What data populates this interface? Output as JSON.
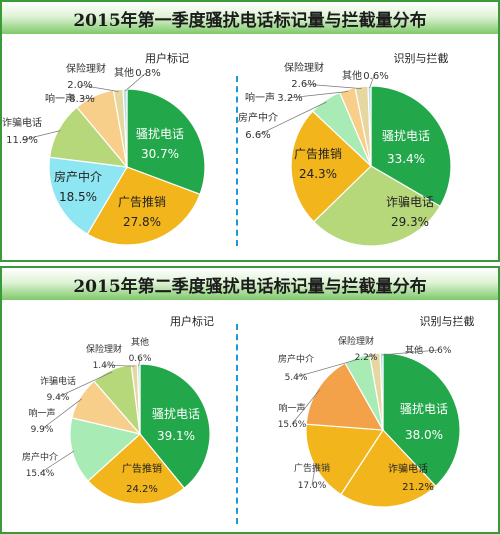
{
  "chart_data": [
    {
      "type": "pie",
      "group_title": "2015年第一季度骚扰电话标记量与拦截量分布",
      "title": "用户标记",
      "slices": [
        {
          "label": "骚扰电话",
          "value": 30.7,
          "value_text": "30.7%"
        },
        {
          "label": "广告推销",
          "value": 27.8,
          "value_text": "27.8%"
        },
        {
          "label": "房产中介",
          "value": 18.5,
          "value_text": "18.5%"
        },
        {
          "label": "诈骗电话",
          "value": 11.9,
          "value_text": "11.9%"
        },
        {
          "label": "响一声",
          "value": 8.3,
          "value_text": "8.3%"
        },
        {
          "label": "保险理财",
          "value": 2.0,
          "value_text": "2.0%"
        },
        {
          "label": "其他",
          "value": 0.8,
          "value_text": "0.8%"
        }
      ]
    },
    {
      "type": "pie",
      "group_title": "2015年第一季度骚扰电话标记量与拦截量分布",
      "title": "识别与拦截",
      "slices": [
        {
          "label": "骚扰电话",
          "value": 33.4,
          "value_text": "33.4%"
        },
        {
          "label": "诈骗电话",
          "value": 29.3,
          "value_text": "29.3%"
        },
        {
          "label": "广告推销",
          "value": 24.3,
          "value_text": "24.3%"
        },
        {
          "label": "房产中介",
          "value": 6.6,
          "value_text": "6.6%"
        },
        {
          "label": "响一声",
          "value": 3.2,
          "value_text": "3.2%"
        },
        {
          "label": "保险理财",
          "value": 2.6,
          "value_text": "2.6%"
        },
        {
          "label": "其他",
          "value": 0.6,
          "value_text": "0.6%"
        }
      ]
    },
    {
      "type": "pie",
      "group_title": "2015年第二季度骚扰电话标记量与拦截量分布",
      "title": "用户标记",
      "slices": [
        {
          "label": "骚扰电话",
          "value": 39.1,
          "value_text": "39.1%"
        },
        {
          "label": "广告推销",
          "value": 24.2,
          "value_text": "24.2%"
        },
        {
          "label": "房产中介",
          "value": 15.4,
          "value_text": "15.4%"
        },
        {
          "label": "响一声",
          "value": 9.9,
          "value_text": "9.9%"
        },
        {
          "label": "诈骗电话",
          "value": 9.4,
          "value_text": "9.4%"
        },
        {
          "label": "保险理财",
          "value": 1.4,
          "value_text": "1.4%"
        },
        {
          "label": "其他",
          "value": 0.6,
          "value_text": "0.6%"
        }
      ]
    },
    {
      "type": "pie",
      "group_title": "2015年第二季度骚扰电话标记量与拦截量分布",
      "title": "识别与拦截",
      "slices": [
        {
          "label": "骚扰电话",
          "value": 38.0,
          "value_text": "38.0%"
        },
        {
          "label": "诈骗电话",
          "value": 21.2,
          "value_text": "21.2%"
        },
        {
          "label": "广告推销",
          "value": 17.0,
          "value_text": "17.0%"
        },
        {
          "label": "响一声",
          "value": 15.6,
          "value_text": "15.6%"
        },
        {
          "label": "房产中介",
          "value": 5.4,
          "value_text": "5.4%"
        },
        {
          "label": "保险理财",
          "value": 2.2,
          "value_text": "2.2%"
        },
        {
          "label": "其他",
          "value": 0.6,
          "value_text": "0.6%"
        }
      ]
    }
  ],
  "colors": {
    "骚扰电话": "#22a84a",
    "广告推销": "#f3b51c",
    "诈骗电话_q1": "#b6d77a",
    "诈骗电话_q2r": "#f3b51c",
    "房产中介_q1l": "#8ee6f2",
    "房产中介_other": "#a8ebb4",
    "响一声_q2r": "#f3a24a",
    "响一声": "#f7cf8a",
    "保险理财": "#e6d6a0",
    "其他": "#b7dfe6",
    "border": "#3a9a3a",
    "divider": "#1a9ad6"
  }
}
